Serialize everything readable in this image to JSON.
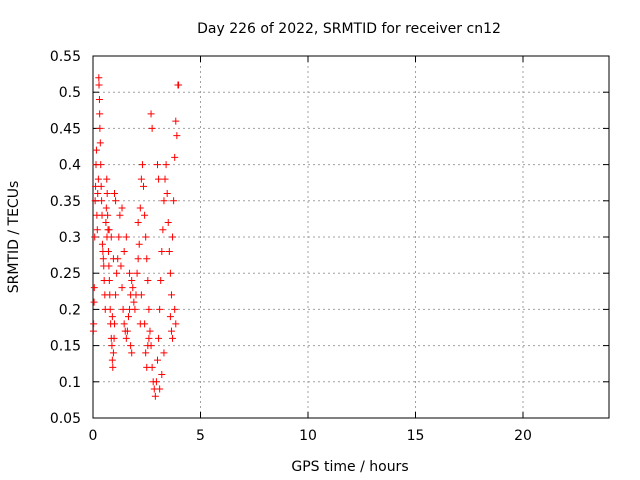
{
  "chart_data": {
    "type": "scatter",
    "title": "Day 226 of 2022, SRMTID for receiver cn12",
    "xlabel": "GPS time / hours",
    "ylabel": "SRMTID / TECUs",
    "xlim": [
      0,
      24
    ],
    "ylim": [
      0.05,
      0.55
    ],
    "xticks": [
      0,
      5,
      10,
      15,
      20
    ],
    "yticks": [
      0.05,
      0.1,
      0.15,
      0.2,
      0.25,
      0.3,
      0.35,
      0.4,
      0.45,
      0.5,
      0.55
    ],
    "xtick_labels": [
      "0",
      "5",
      "10",
      "15",
      "20"
    ],
    "ytick_labels": [
      "0.05",
      "0.1",
      "0.15",
      "0.2",
      "0.25",
      "0.3",
      "0.35",
      "0.4",
      "0.45",
      "0.5",
      "0.55"
    ],
    "grid": true,
    "marker": "+",
    "series": [
      {
        "name": "SRMTID",
        "color": "#ff0000",
        "points": [
          [
            0.02,
            0.17
          ],
          [
            0.03,
            0.18
          ],
          [
            0.05,
            0.21
          ],
          [
            0.06,
            0.23
          ],
          [
            0.08,
            0.3
          ],
          [
            0.1,
            0.35
          ],
          [
            0.12,
            0.37
          ],
          [
            0.14,
            0.4
          ],
          [
            0.16,
            0.42
          ],
          [
            0.18,
            0.33
          ],
          [
            0.2,
            0.31
          ],
          [
            0.22,
            0.36
          ],
          [
            0.25,
            0.38
          ],
          [
            0.27,
            0.52
          ],
          [
            0.28,
            0.51
          ],
          [
            0.3,
            0.49
          ],
          [
            0.31,
            0.47
          ],
          [
            0.32,
            0.45
          ],
          [
            0.34,
            0.43
          ],
          [
            0.36,
            0.4
          ],
          [
            0.38,
            0.37
          ],
          [
            0.4,
            0.35
          ],
          [
            0.42,
            0.33
          ],
          [
            0.44,
            0.29
          ],
          [
            0.46,
            0.28
          ],
          [
            0.48,
            0.27
          ],
          [
            0.5,
            0.26
          ],
          [
            0.52,
            0.24
          ],
          [
            0.55,
            0.22
          ],
          [
            0.57,
            0.2
          ],
          [
            0.6,
            0.32
          ],
          [
            0.62,
            0.34
          ],
          [
            0.64,
            0.38
          ],
          [
            0.66,
            0.36
          ],
          [
            0.68,
            0.33
          ],
          [
            0.7,
            0.31
          ],
          [
            0.72,
            0.28
          ],
          [
            0.74,
            0.26
          ],
          [
            0.76,
            0.24
          ],
          [
            0.78,
            0.22
          ],
          [
            0.8,
            0.2
          ],
          [
            0.82,
            0.18
          ],
          [
            0.85,
            0.16
          ],
          [
            0.88,
            0.15
          ],
          [
            0.9,
            0.13
          ],
          [
            0.92,
            0.12
          ],
          [
            0.95,
            0.14
          ],
          [
            0.98,
            0.16
          ],
          [
            1.0,
            0.18
          ],
          [
            1.05,
            0.22
          ],
          [
            1.1,
            0.25
          ],
          [
            1.15,
            0.27
          ],
          [
            1.2,
            0.3
          ],
          [
            1.25,
            0.33
          ],
          [
            1.3,
            0.26
          ],
          [
            1.35,
            0.23
          ],
          [
            1.4,
            0.2
          ],
          [
            1.45,
            0.18
          ],
          [
            1.5,
            0.17
          ],
          [
            1.55,
            0.16
          ],
          [
            1.6,
            0.17
          ],
          [
            1.65,
            0.19
          ],
          [
            1.7,
            0.2
          ],
          [
            1.75,
            0.22
          ],
          [
            1.8,
            0.24
          ],
          [
            1.85,
            0.23
          ],
          [
            1.9,
            0.21
          ],
          [
            1.95,
            0.2
          ],
          [
            2.0,
            0.22
          ],
          [
            2.05,
            0.25
          ],
          [
            2.1,
            0.27
          ],
          [
            2.15,
            0.29
          ],
          [
            2.2,
            0.34
          ],
          [
            2.25,
            0.38
          ],
          [
            2.3,
            0.4
          ],
          [
            2.35,
            0.37
          ],
          [
            2.4,
            0.33
          ],
          [
            2.45,
            0.3
          ],
          [
            2.5,
            0.27
          ],
          [
            2.55,
            0.24
          ],
          [
            2.6,
            0.2
          ],
          [
            2.65,
            0.17
          ],
          [
            2.7,
            0.15
          ],
          [
            2.75,
            0.12
          ],
          [
            2.8,
            0.1
          ],
          [
            2.85,
            0.09
          ],
          [
            2.9,
            0.08
          ],
          [
            2.95,
            0.1
          ],
          [
            3.0,
            0.13
          ],
          [
            3.05,
            0.16
          ],
          [
            3.1,
            0.2
          ],
          [
            3.15,
            0.24
          ],
          [
            3.2,
            0.28
          ],
          [
            3.25,
            0.31
          ],
          [
            3.3,
            0.35
          ],
          [
            3.35,
            0.38
          ],
          [
            3.4,
            0.4
          ],
          [
            3.45,
            0.36
          ],
          [
            3.5,
            0.32
          ],
          [
            3.55,
            0.28
          ],
          [
            3.6,
            0.25
          ],
          [
            3.65,
            0.22
          ],
          [
            3.7,
            0.3
          ],
          [
            3.75,
            0.35
          ],
          [
            3.8,
            0.41
          ],
          [
            3.85,
            0.46
          ],
          [
            3.9,
            0.44
          ],
          [
            3.95,
            0.51
          ],
          [
            3.98,
            0.51
          ],
          [
            1.35,
            0.34
          ],
          [
            2.7,
            0.47
          ],
          [
            2.75,
            0.45
          ],
          [
            3.0,
            0.4
          ],
          [
            3.05,
            0.38
          ],
          [
            1.45,
            0.28
          ],
          [
            1.55,
            0.3
          ],
          [
            2.1,
            0.32
          ],
          [
            2.2,
            0.18
          ],
          [
            2.25,
            0.22
          ],
          [
            3.6,
            0.19
          ],
          [
            3.65,
            0.17
          ],
          [
            3.7,
            0.16
          ],
          [
            3.8,
            0.2
          ],
          [
            3.85,
            0.18
          ],
          [
            0.9,
            0.19
          ],
          [
            0.95,
            0.27
          ],
          [
            1.0,
            0.36
          ],
          [
            1.05,
            0.35
          ],
          [
            1.7,
            0.25
          ],
          [
            1.75,
            0.15
          ],
          [
            1.8,
            0.14
          ],
          [
            2.4,
            0.18
          ],
          [
            2.45,
            0.14
          ],
          [
            2.5,
            0.12
          ],
          [
            2.55,
            0.15
          ],
          [
            2.6,
            0.16
          ],
          [
            3.1,
            0.09
          ],
          [
            3.2,
            0.11
          ],
          [
            3.3,
            0.14
          ],
          [
            0.65,
            0.3
          ],
          [
            0.75,
            0.31
          ],
          [
            0.85,
            0.3
          ]
        ]
      }
    ]
  }
}
